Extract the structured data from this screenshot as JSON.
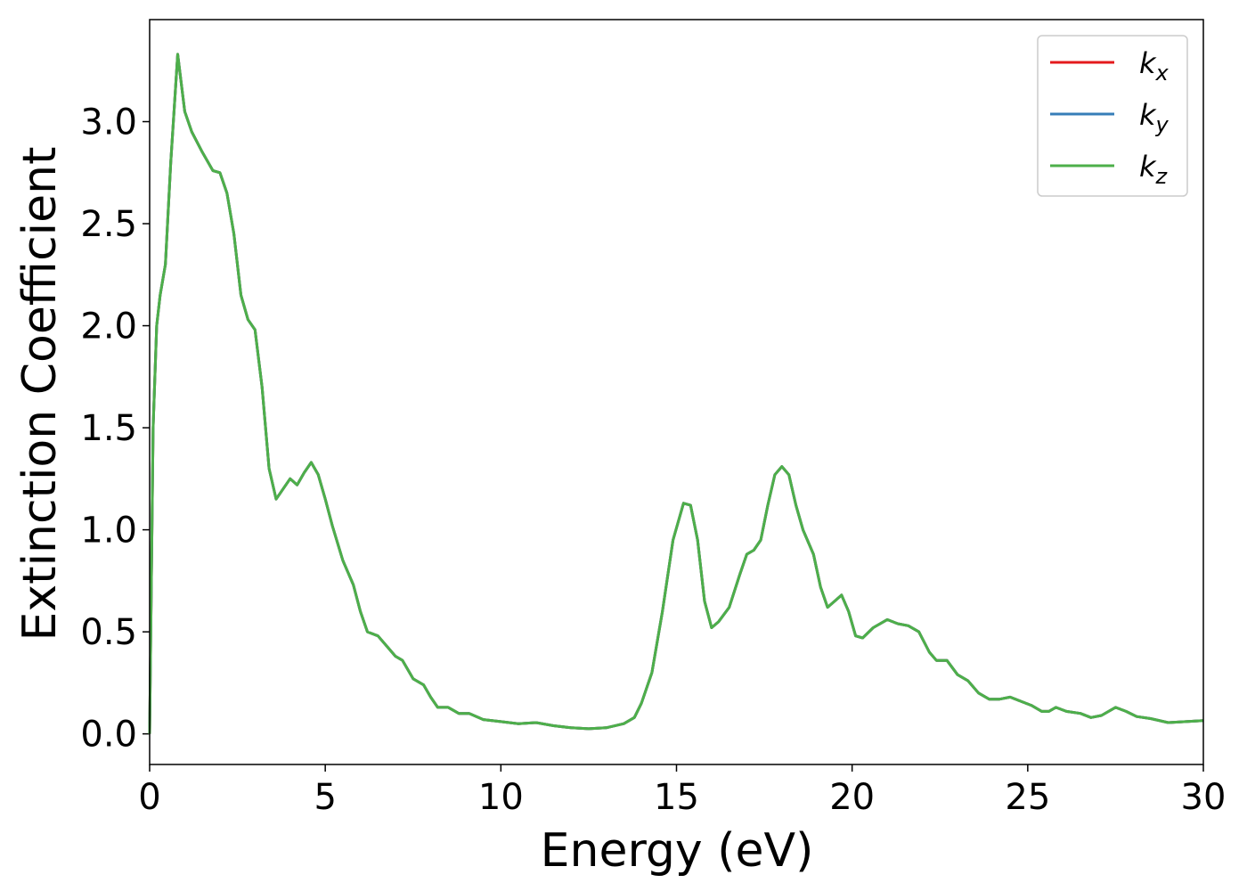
{
  "chart_data": {
    "type": "line",
    "xlabel": "Energy (eV)",
    "ylabel": "Extinction Coefficient",
    "x": [
      0,
      0.1,
      0.2,
      0.3,
      0.45,
      0.6,
      0.8,
      1.0,
      1.2,
      1.5,
      1.8,
      2.0,
      2.2,
      2.4,
      2.6,
      2.8,
      3.0,
      3.2,
      3.4,
      3.6,
      3.8,
      4.0,
      4.2,
      4.4,
      4.6,
      4.8,
      5.0,
      5.2,
      5.5,
      5.8,
      6.0,
      6.2,
      6.5,
      6.8,
      7.0,
      7.2,
      7.5,
      7.8,
      8.0,
      8.2,
      8.5,
      8.8,
      9.1,
      9.5,
      10,
      10.5,
      11,
      11.5,
      12,
      12.5,
      13,
      13.5,
      13.8,
      14.0,
      14.3,
      14.6,
      14.9,
      15.2,
      15.4,
      15.6,
      15.8,
      16.0,
      16.2,
      16.5,
      16.8,
      17.0,
      17.2,
      17.4,
      17.6,
      17.8,
      18.0,
      18.2,
      18.4,
      18.6,
      18.9,
      19.1,
      19.3,
      19.5,
      19.7,
      19.9,
      20.1,
      20.3,
      20.6,
      21.0,
      21.3,
      21.6,
      21.9,
      22.2,
      22.4,
      22.7,
      23.0,
      23.3,
      23.6,
      23.9,
      24.2,
      24.5,
      24.8,
      25.1,
      25.4,
      25.6,
      25.8,
      26.1,
      26.5,
      26.8,
      27.1,
      27.5,
      27.8,
      28.1,
      28.5,
      29.0,
      29.5,
      30
    ],
    "series": [
      {
        "name": "kx",
        "color": "#e41a1c",
        "values": [
          0,
          1.5,
          2.0,
          2.15,
          2.3,
          2.8,
          3.33,
          3.05,
          2.95,
          2.85,
          2.76,
          2.75,
          2.65,
          2.45,
          2.15,
          2.03,
          1.98,
          1.7,
          1.3,
          1.15,
          1.2,
          1.25,
          1.22,
          1.28,
          1.33,
          1.27,
          1.15,
          1.02,
          0.85,
          0.73,
          0.6,
          0.5,
          0.48,
          0.42,
          0.38,
          0.36,
          0.27,
          0.24,
          0.18,
          0.13,
          0.13,
          0.1,
          0.1,
          0.07,
          0.06,
          0.05,
          0.055,
          0.04,
          0.03,
          0.025,
          0.03,
          0.05,
          0.08,
          0.15,
          0.3,
          0.6,
          0.95,
          1.13,
          1.12,
          0.95,
          0.65,
          0.52,
          0.55,
          0.62,
          0.78,
          0.88,
          0.9,
          0.95,
          1.12,
          1.27,
          1.31,
          1.27,
          1.12,
          1.0,
          0.88,
          0.72,
          0.62,
          0.65,
          0.68,
          0.6,
          0.48,
          0.47,
          0.52,
          0.56,
          0.54,
          0.53,
          0.5,
          0.4,
          0.36,
          0.36,
          0.29,
          0.26,
          0.2,
          0.17,
          0.17,
          0.18,
          0.16,
          0.14,
          0.11,
          0.11,
          0.13,
          0.11,
          0.1,
          0.08,
          0.09,
          0.13,
          0.11,
          0.085,
          0.075,
          0.055,
          0.06,
          0.065
        ]
      },
      {
        "name": "ky",
        "color": "#377eb8",
        "values": [
          0,
          1.5,
          2.0,
          2.15,
          2.3,
          2.8,
          3.33,
          3.05,
          2.95,
          2.85,
          2.76,
          2.75,
          2.65,
          2.45,
          2.15,
          2.03,
          1.98,
          1.7,
          1.3,
          1.15,
          1.2,
          1.25,
          1.22,
          1.28,
          1.33,
          1.27,
          1.15,
          1.02,
          0.85,
          0.73,
          0.6,
          0.5,
          0.48,
          0.42,
          0.38,
          0.36,
          0.27,
          0.24,
          0.18,
          0.13,
          0.13,
          0.1,
          0.1,
          0.07,
          0.06,
          0.05,
          0.055,
          0.04,
          0.03,
          0.025,
          0.03,
          0.05,
          0.08,
          0.15,
          0.3,
          0.6,
          0.95,
          1.13,
          1.12,
          0.95,
          0.65,
          0.52,
          0.55,
          0.62,
          0.78,
          0.88,
          0.9,
          0.95,
          1.12,
          1.27,
          1.31,
          1.27,
          1.12,
          1.0,
          0.88,
          0.72,
          0.62,
          0.65,
          0.68,
          0.6,
          0.48,
          0.47,
          0.52,
          0.56,
          0.54,
          0.53,
          0.5,
          0.4,
          0.36,
          0.36,
          0.29,
          0.26,
          0.2,
          0.17,
          0.17,
          0.18,
          0.16,
          0.14,
          0.11,
          0.11,
          0.13,
          0.11,
          0.1,
          0.08,
          0.09,
          0.13,
          0.11,
          0.085,
          0.075,
          0.055,
          0.06,
          0.065
        ]
      },
      {
        "name": "kz",
        "color": "#4daf4a",
        "values": [
          0,
          1.5,
          2.0,
          2.15,
          2.3,
          2.8,
          3.33,
          3.05,
          2.95,
          2.85,
          2.76,
          2.75,
          2.65,
          2.45,
          2.15,
          2.03,
          1.98,
          1.7,
          1.3,
          1.15,
          1.2,
          1.25,
          1.22,
          1.28,
          1.33,
          1.27,
          1.15,
          1.02,
          0.85,
          0.73,
          0.6,
          0.5,
          0.48,
          0.42,
          0.38,
          0.36,
          0.27,
          0.24,
          0.18,
          0.13,
          0.13,
          0.1,
          0.1,
          0.07,
          0.06,
          0.05,
          0.055,
          0.04,
          0.03,
          0.025,
          0.03,
          0.05,
          0.08,
          0.15,
          0.3,
          0.6,
          0.95,
          1.13,
          1.12,
          0.95,
          0.65,
          0.52,
          0.55,
          0.62,
          0.78,
          0.88,
          0.9,
          0.95,
          1.12,
          1.27,
          1.31,
          1.27,
          1.12,
          1.0,
          0.88,
          0.72,
          0.62,
          0.65,
          0.68,
          0.6,
          0.48,
          0.47,
          0.52,
          0.56,
          0.54,
          0.53,
          0.5,
          0.4,
          0.36,
          0.36,
          0.29,
          0.26,
          0.2,
          0.17,
          0.17,
          0.18,
          0.16,
          0.14,
          0.11,
          0.11,
          0.13,
          0.11,
          0.1,
          0.08,
          0.09,
          0.13,
          0.11,
          0.085,
          0.075,
          0.055,
          0.06,
          0.065
        ]
      }
    ],
    "xlim": [
      0,
      30
    ],
    "xticks": [
      0,
      5,
      10,
      15,
      20,
      25,
      30
    ],
    "ylim": [
      -0.15,
      3.5
    ],
    "yticks": [
      {
        "value": 0,
        "label": "0.0"
      },
      0.5,
      {
        "value": 1,
        "label": "1.0"
      },
      1.5,
      {
        "value": 2,
        "label": "2.0"
      },
      2.5,
      {
        "value": 3,
        "label": "3.0"
      }
    ],
    "legend": "upper right",
    "grid": false
  }
}
